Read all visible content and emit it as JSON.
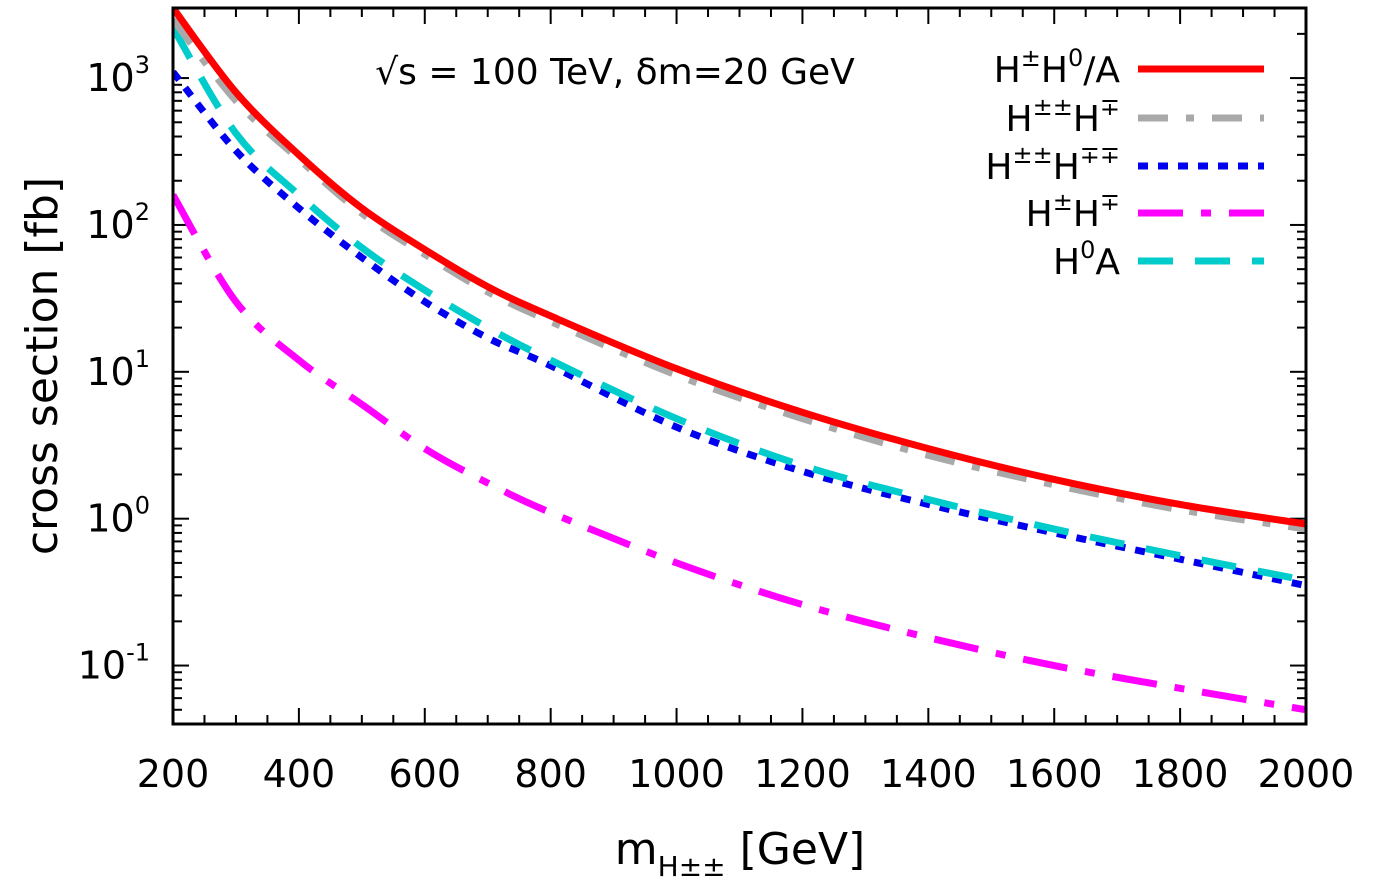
{
  "chart_data": {
    "type": "line",
    "annotation": "√s = 100 TeV, δm=20 GeV",
    "xlabel": {
      "main": "m",
      "sub": "H±±",
      "unit": "[GeV]"
    },
    "ylabel": "cross section [fb]",
    "xlim": [
      200,
      2000
    ],
    "ylim": [
      0.04,
      3000
    ],
    "yscale": "log",
    "legend_position": "top-right",
    "x_ticks": [
      200,
      400,
      600,
      800,
      1000,
      1200,
      1400,
      1600,
      1800,
      2000
    ],
    "y_ticks": [
      {
        "value": 0.1,
        "base": "10",
        "exp": "-1"
      },
      {
        "value": 1,
        "base": "10",
        "exp": "0"
      },
      {
        "value": 10,
        "base": "10",
        "exp": "1"
      },
      {
        "value": 100,
        "base": "10",
        "exp": "2"
      },
      {
        "value": 1000,
        "base": "10",
        "exp": "3"
      }
    ],
    "x": [
      200,
      300,
      400,
      500,
      600,
      700,
      800,
      1000,
      1200,
      1400,
      1600,
      1800,
      2000
    ],
    "series": [
      {
        "name": "H±H0/A",
        "legend_parts": [
          {
            "t": "H"
          },
          {
            "t": "±",
            "sup": true
          },
          {
            "t": "H"
          },
          {
            "t": "0",
            "sup": true
          },
          {
            "t": "/A"
          }
        ],
        "color": "#ff0000",
        "dash": "none",
        "values": [
          3000,
          800,
          300,
          130,
          68,
          38,
          24,
          10.5,
          5.3,
          3.0,
          1.85,
          1.25,
          0.92
        ]
      },
      {
        "name": "H±±H∓",
        "legend_parts": [
          {
            "t": "H"
          },
          {
            "t": "±±",
            "sup": true
          },
          {
            "t": "H"
          },
          {
            "t": "∓",
            "sup": true
          }
        ],
        "color": "#a9a9a9",
        "dash": "30,18,8,18",
        "values": [
          2500,
          700,
          280,
          120,
          63,
          35,
          22,
          9.5,
          4.8,
          2.7,
          1.7,
          1.15,
          0.85
        ]
      },
      {
        "name": "H±±H∓∓",
        "legend_parts": [
          {
            "t": "H"
          },
          {
            "t": "±±",
            "sup": true
          },
          {
            "t": "H"
          },
          {
            "t": "∓∓",
            "sup": true
          }
        ],
        "color": "#0000ee",
        "dash": "10,10",
        "values": [
          1100,
          320,
          130,
          60,
          30,
          17,
          11,
          4.2,
          2.1,
          1.25,
          0.8,
          0.53,
          0.35
        ]
      },
      {
        "name": "H±H∓",
        "legend_parts": [
          {
            "t": "H"
          },
          {
            "t": "±",
            "sup": true
          },
          {
            "t": "H"
          },
          {
            "t": "∓",
            "sup": true
          }
        ],
        "color": "#ff00ff",
        "dash": "45,18,10,18",
        "values": [
          160,
          30,
          12,
          6,
          3,
          1.75,
          1.1,
          0.5,
          0.26,
          0.155,
          0.1,
          0.07,
          0.05
        ]
      },
      {
        "name": "H0A",
        "legend_parts": [
          {
            "t": "H"
          },
          {
            "t": "0",
            "sup": true
          },
          {
            "t": "A"
          }
        ],
        "color": "#00cccc",
        "dash": "35,22",
        "values": [
          2200,
          420,
          160,
          70,
          36,
          20,
          12,
          4.8,
          2.3,
          1.35,
          0.85,
          0.56,
          0.38
        ]
      }
    ]
  }
}
